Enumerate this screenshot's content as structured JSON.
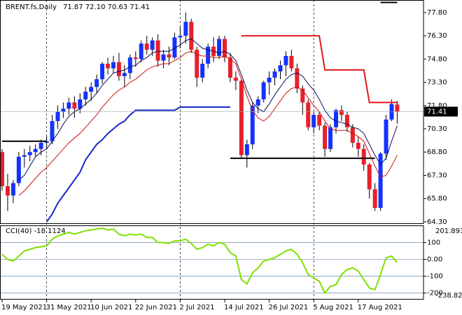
{
  "chart_data": [
    {
      "type": "candlestick",
      "title": "BRENT.fs,Daily",
      "ohlc_label": "71.87 72.10 70.63 71.41",
      "up_color": "#1432ff",
      "down_color": "#e8202a",
      "open": [
        68.8,
        66.6,
        66.0,
        66.8,
        68.5,
        68.6,
        68.8,
        69.0,
        69.4,
        69.5,
        70.8,
        71.4,
        71.6,
        72.0,
        71.6,
        72.2,
        72.7,
        73.0,
        73.5,
        74.5,
        74.2,
        74.6,
        73.7,
        73.9,
        74.9,
        74.8,
        75.8,
        75.4,
        76.0,
        74.7,
        75.1,
        74.9,
        76.2,
        76.3,
        77.2,
        75.4,
        73.6,
        74.5,
        75.6,
        75.0,
        76.1,
        74.9,
        73.6,
        73.4,
        68.6,
        69.3,
        71.8,
        72.2,
        73.3,
        73.6,
        74.0,
        74.4,
        75.0,
        74.2,
        72.9,
        72.0,
        70.4,
        71.2,
        70.5,
        69.0,
        70.4,
        71.5,
        71.2,
        70.4,
        69.4,
        69.0,
        68.0,
        66.4,
        65.2,
        68.7,
        70.9,
        71.87
      ],
      "high": [
        69.0,
        67.4,
        67.0,
        68.8,
        69.0,
        69.2,
        69.3,
        69.6,
        69.8,
        71.2,
        71.8,
        72.0,
        72.3,
        72.4,
        72.6,
        73.0,
        73.3,
        73.8,
        74.6,
        74.9,
        75.0,
        75.2,
        74.4,
        75.1,
        75.3,
        76.0,
        76.3,
        76.2,
        76.4,
        75.4,
        75.6,
        76.5,
        76.9,
        77.8,
        77.4,
        75.6,
        74.8,
        75.8,
        76.2,
        76.3,
        76.3,
        75.2,
        74.0,
        73.5,
        69.6,
        72.0,
        72.4,
        73.4,
        74.0,
        74.2,
        74.7,
        75.3,
        75.4,
        74.5,
        73.1,
        72.2,
        71.4,
        71.4,
        70.7,
        70.6,
        71.6,
        71.8,
        71.4,
        70.6,
        69.8,
        69.3,
        68.1,
        66.8,
        68.8,
        71.2,
        72.2,
        72.1
      ],
      "low": [
        66.3,
        65.0,
        65.5,
        66.6,
        67.8,
        68.2,
        68.5,
        68.6,
        69.0,
        69.3,
        70.3,
        71.0,
        71.2,
        71.0,
        71.3,
        71.8,
        72.1,
        72.6,
        73.2,
        73.8,
        73.9,
        73.4,
        73.0,
        73.5,
        74.3,
        74.6,
        75.1,
        75.0,
        74.3,
        74.2,
        74.4,
        74.8,
        75.5,
        75.8,
        75.2,
        73.0,
        73.3,
        74.2,
        74.6,
        74.8,
        74.6,
        73.3,
        72.8,
        68.4,
        67.8,
        69.0,
        71.3,
        72.0,
        72.5,
        73.1,
        73.5,
        73.7,
        74.0,
        72.6,
        71.2,
        70.2,
        70.0,
        70.2,
        68.5,
        68.8,
        70.0,
        70.8,
        70.1,
        69.1,
        68.5,
        67.6,
        65.8,
        65.0,
        65.0,
        68.3,
        70.8,
        70.63
      ],
      "close": [
        66.6,
        66.0,
        66.8,
        68.5,
        68.6,
        68.8,
        69.0,
        69.4,
        69.5,
        70.8,
        71.4,
        71.6,
        72.0,
        71.6,
        72.2,
        72.7,
        73.0,
        73.5,
        74.5,
        74.2,
        74.6,
        73.7,
        73.9,
        74.9,
        74.8,
        75.8,
        75.4,
        76.0,
        74.7,
        75.1,
        74.9,
        76.2,
        76.3,
        77.2,
        75.4,
        73.6,
        74.5,
        75.6,
        75.0,
        76.1,
        74.9,
        73.6,
        73.4,
        68.6,
        69.3,
        71.8,
        72.2,
        73.3,
        73.6,
        74.0,
        74.4,
        75.0,
        74.2,
        72.9,
        72.0,
        70.4,
        71.2,
        70.5,
        69.0,
        70.4,
        71.5,
        71.2,
        70.4,
        69.4,
        69.0,
        68.0,
        66.4,
        65.2,
        68.7,
        70.9,
        71.9,
        71.41
      ],
      "series": [
        {
          "color": "#0a0a5a",
          "values": [
            null,
            null,
            null,
            67.0,
            67.3,
            67.9,
            68.5,
            68.8,
            69.0,
            69.5,
            70.0,
            70.6,
            71.1,
            71.4,
            71.6,
            71.9,
            72.2,
            72.6,
            73.1,
            73.5,
            73.9,
            74.0,
            74.1,
            74.3,
            74.4,
            74.7,
            74.9,
            75.2,
            75.3,
            75.3,
            75.3,
            75.5,
            75.7,
            76.0,
            76.1,
            75.8,
            75.5,
            75.4,
            75.3,
            75.2,
            75.3,
            75.1,
            74.7,
            73.8,
            72.8,
            72.0,
            71.6,
            71.4,
            71.9,
            72.5,
            73.0,
            73.5,
            73.8,
            73.9,
            73.7,
            73.2,
            72.8,
            72.2,
            71.5,
            71.0,
            70.8,
            70.7,
            70.6,
            70.4,
            70.3,
            70.0,
            69.3,
            68.6,
            68.0,
            68.4,
            69.5,
            70.5
          ]
        },
        {
          "color": "#d01010",
          "values": [
            null,
            null,
            null,
            66.0,
            66.3,
            66.7,
            67.1,
            67.5,
            67.8,
            68.2,
            68.6,
            69.0,
            69.4,
            69.7,
            70.0,
            70.4,
            70.8,
            71.2,
            71.7,
            72.1,
            72.5,
            72.8,
            73.0,
            73.3,
            73.5,
            73.8,
            74.1,
            74.3,
            74.4,
            74.5,
            74.5,
            74.7,
            74.9,
            75.2,
            75.3,
            75.1,
            75.0,
            75.0,
            74.9,
            74.9,
            75.0,
            74.8,
            74.5,
            73.5,
            72.4,
            71.5,
            71.0,
            70.8,
            71.1,
            71.6,
            72.1,
            72.6,
            72.9,
            73.0,
            72.8,
            72.3,
            71.8,
            71.4,
            70.8,
            70.3,
            70.2,
            70.2,
            70.2,
            70.0,
            69.8,
            69.5,
            68.7,
            67.9,
            67.2,
            67.3,
            67.9,
            68.6
          ]
        },
        {
          "color": "#1428c8",
          "width": 2,
          "values": [
            null,
            null,
            null,
            null,
            null,
            null,
            null,
            null,
            64.3,
            64.8,
            65.5,
            66.0,
            66.5,
            67.0,
            67.5,
            68.3,
            68.8,
            69.3,
            69.6,
            70.0,
            70.3,
            70.6,
            70.8,
            71.2,
            71.5,
            71.5,
            71.5,
            71.5,
            71.5,
            71.5,
            71.5,
            71.5,
            71.7,
            71.7,
            71.7,
            71.7,
            71.7,
            71.7,
            71.7,
            71.7,
            71.7,
            71.7,
            null,
            null,
            null,
            null,
            null,
            null,
            null,
            null,
            null,
            null,
            null,
            null,
            null,
            null,
            null,
            null,
            null,
            null,
            null,
            null,
            null,
            null,
            null,
            null,
            null,
            null,
            null,
            null,
            null,
            null
          ]
        },
        {
          "color": "#e01818",
          "width": 2,
          "values": [
            null,
            null,
            null,
            null,
            null,
            null,
            null,
            null,
            null,
            null,
            null,
            null,
            null,
            null,
            null,
            null,
            null,
            null,
            null,
            null,
            null,
            null,
            null,
            null,
            null,
            null,
            null,
            null,
            null,
            null,
            null,
            null,
            null,
            null,
            null,
            null,
            null,
            null,
            null,
            null,
            null,
            null,
            null,
            76.3,
            76.3,
            76.3,
            76.3,
            76.3,
            76.3,
            76.3,
            76.3,
            76.3,
            76.3,
            76.3,
            76.3,
            76.3,
            76.3,
            76.3,
            74.1,
            74.1,
            74.1,
            74.1,
            74.1,
            74.1,
            74.1,
            74.1,
            72.0,
            72.0,
            72.0,
            72.0,
            72.0,
            72.0
          ]
        },
        {
          "color": "#000000",
          "width": 2,
          "values": [
            69.5,
            69.5,
            69.5,
            69.5,
            69.5,
            69.5,
            69.5,
            69.5,
            69.5,
            null,
            null,
            null,
            null,
            null,
            null,
            null,
            null,
            null,
            null,
            null,
            null,
            null,
            null,
            null,
            null,
            null,
            null,
            null,
            null,
            null,
            null,
            null,
            null,
            null,
            null,
            null,
            null,
            null,
            null,
            null,
            null,
            68.4,
            68.4,
            68.4,
            68.4,
            68.4,
            68.4,
            68.4,
            68.4,
            68.4,
            68.4,
            68.4,
            68.4,
            68.4,
            68.4,
            68.4,
            68.4,
            68.4,
            68.4,
            68.4,
            68.4,
            68.4,
            68.4,
            68.4,
            68.4,
            68.4,
            68.4,
            68.4,
            null,
            null,
            null,
            null
          ]
        },
        {
          "color": "#000000",
          "width": 2,
          "values": [
            null,
            null,
            null,
            null,
            null,
            null,
            null,
            null,
            null,
            null,
            null,
            null,
            null,
            null,
            null,
            null,
            null,
            null,
            null,
            null,
            null,
            null,
            null,
            null,
            null,
            null,
            null,
            null,
            null,
            null,
            null,
            null,
            null,
            null,
            null,
            null,
            null,
            null,
            null,
            null,
            null,
            null,
            null,
            null,
            null,
            null,
            null,
            null,
            null,
            null,
            null,
            null,
            null,
            null,
            null,
            null,
            null,
            null,
            null,
            null,
            null,
            null,
            null,
            null,
            null,
            null,
            null,
            null,
            78.45,
            78.45,
            78.45,
            78.45
          ]
        }
      ],
      "last_price": 71.41,
      "ylim": [
        64.16,
        78.61
      ],
      "yticks": [
        {
          "value": 77.8,
          "label": "77.80"
        },
        {
          "value": 76.3,
          "label": "76.30"
        },
        {
          "value": 74.8,
          "label": "74.80"
        },
        {
          "value": 73.3,
          "label": "73.30"
        },
        {
          "value": 71.8,
          "label": "71.80"
        },
        {
          "value": 70.3,
          "label": "70.30"
        },
        {
          "value": 68.8,
          "label": "68.80"
        },
        {
          "value": 67.3,
          "label": "67.30"
        },
        {
          "value": 65.8,
          "label": "65.80"
        },
        {
          "value": 64.3,
          "label": "64.30"
        }
      ],
      "xticks": [
        {
          "value": 0,
          "label": "19 May 2021"
        },
        {
          "value": 8,
          "label": "31 May 2021"
        },
        {
          "value": 16,
          "label": "10 Jun 2021"
        },
        {
          "value": 24,
          "label": "22 Jun 2021"
        },
        {
          "value": 32,
          "label": "2 Jul 2021"
        },
        {
          "value": 40,
          "label": "14 Jul 2021"
        },
        {
          "value": 48,
          "label": "26 Jul 2021"
        },
        {
          "value": 56,
          "label": "5 Aug 2021"
        },
        {
          "value": 64,
          "label": "17 Aug 2021"
        }
      ]
    },
    {
      "type": "line",
      "title": "CCI(40) -18.1124",
      "color": "#7fe000",
      "values": [
        30,
        0,
        -10,
        20,
        50,
        60,
        70,
        75,
        80,
        120,
        140,
        150,
        160,
        150,
        160,
        170,
        175,
        180,
        185,
        175,
        180,
        150,
        140,
        150,
        145,
        150,
        130,
        130,
        100,
        100,
        95,
        110,
        110,
        120,
        95,
        60,
        70,
        90,
        80,
        100,
        90,
        40,
        20,
        -120,
        -145,
        -80,
        -50,
        -10,
        0,
        10,
        30,
        50,
        60,
        30,
        -20,
        -90,
        -110,
        -130,
        -200,
        -160,
        -150,
        -90,
        -60,
        -50,
        -70,
        -120,
        -170,
        -180,
        -90,
        10,
        20,
        -18.1124
      ],
      "ylim": [
        -238.825,
        201.8937
      ],
      "yticks": [
        100,
        {
          "value": 0,
          "label": "0.00"
        },
        -100,
        -200
      ]
    }
  ]
}
